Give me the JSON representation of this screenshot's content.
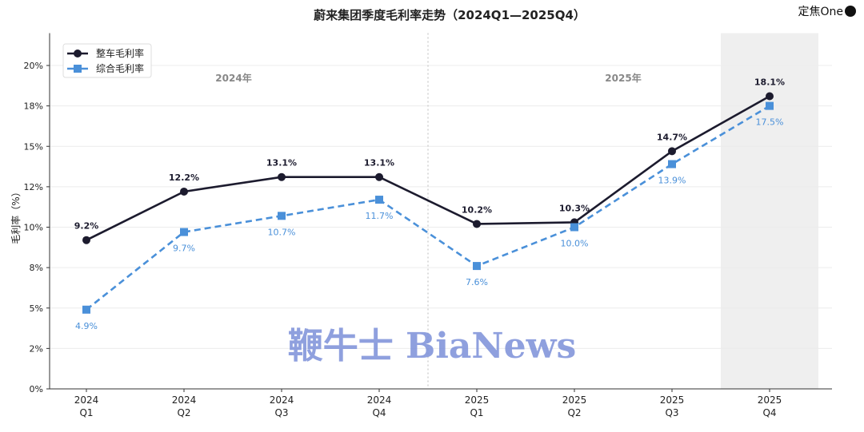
{
  "logo": "定焦One",
  "chart_data": {
    "type": "line",
    "title": "蔚来集团季度毛利率走势（2024Q1—2025Q4）",
    "xlabel": "",
    "ylabel": "毛利率（%）",
    "ylim": [
      0,
      22
    ],
    "yticks": [
      0,
      2.5,
      5,
      7.5,
      10,
      12.5,
      15,
      17.5,
      20
    ],
    "ytick_labels": [
      "0%",
      "2%",
      "5%",
      "8%",
      "10%",
      "12%",
      "15%",
      "18%",
      "20%"
    ],
    "categories": [
      [
        "2024",
        "Q1"
      ],
      [
        "2024",
        "Q2"
      ],
      [
        "2024",
        "Q3"
      ],
      [
        "2024",
        "Q4"
      ],
      [
        "2025",
        "Q1"
      ],
      [
        "2025",
        "Q2"
      ],
      [
        "2025",
        "Q3"
      ],
      [
        "2025",
        "Q4"
      ]
    ],
    "grid": true,
    "legend_placement": "top-left",
    "year_labels": [
      "2024年",
      "2025年"
    ],
    "highlighted_category": "2025 Q4",
    "series": [
      {
        "name": "整车毛利率",
        "color": "#1c1b2e",
        "style": "solid",
        "marker": "circle",
        "values": [
          9.2,
          12.2,
          13.1,
          13.1,
          10.2,
          10.3,
          14.7,
          18.1
        ],
        "labels": [
          "9.2%",
          "12.2%",
          "13.1%",
          "13.1%",
          "10.2%",
          "10.3%",
          "14.7%",
          "18.1%"
        ]
      },
      {
        "name": "综合毛利率",
        "color": "#4a90d9",
        "style": "dashed",
        "marker": "square",
        "values": [
          4.9,
          9.7,
          10.7,
          11.7,
          7.6,
          10.0,
          13.9,
          17.5
        ],
        "labels": [
          "4.9%",
          "9.7%",
          "10.7%",
          "11.7%",
          "7.6%",
          "10.0%",
          "13.9%",
          "17.5%"
        ]
      }
    ],
    "watermark": "鞭牛士 BiaNews"
  }
}
